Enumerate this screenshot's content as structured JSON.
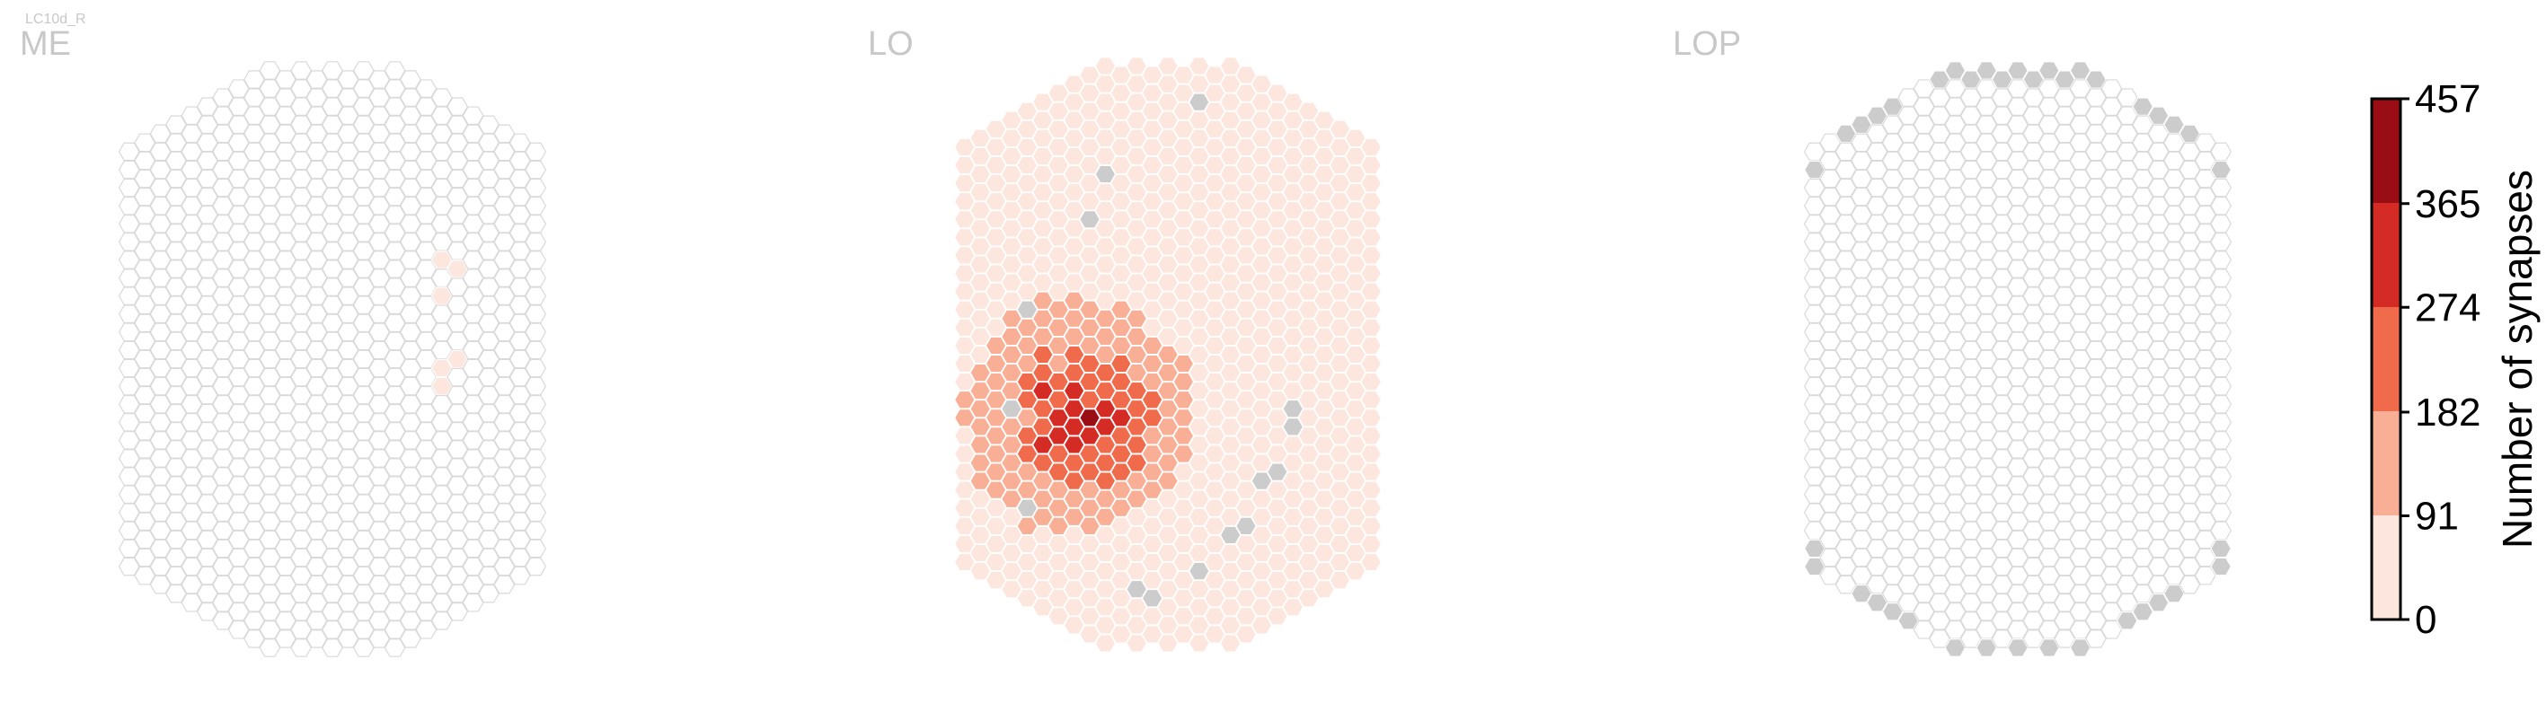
{
  "cell_type": "LC10d_R",
  "chart_data": {
    "type": "heatmap",
    "colorbar": {
      "label": "Number of synapses",
      "ticks": [
        0,
        91,
        182,
        274,
        365,
        457
      ],
      "range": [
        0,
        457
      ],
      "colors": [
        "#fde6dd",
        "#f8af96",
        "#f06a4c",
        "#d42b25",
        "#9b0d15"
      ]
    },
    "empty_color": "#ffffff",
    "empty_stroke": "#d9d9d9",
    "outside_color": "#cccccc",
    "panels": [
      {
        "title": "ME",
        "colored_cells": [
          {
            "q": 7,
            "r": -6,
            "value": 60
          },
          {
            "q": 7,
            "r": -4,
            "value": 35
          },
          {
            "q": 8,
            "r": -5,
            "value": 50
          },
          {
            "q": 7,
            "r": 0,
            "value": 45
          },
          {
            "q": 7,
            "r": 1,
            "value": 55
          },
          {
            "q": 8,
            "r": 0,
            "value": 30
          }
        ],
        "outside_cells": []
      },
      {
        "title": "LO",
        "base_value": 30,
        "hotspot": {
          "q": -6,
          "r": 3,
          "peak": 430,
          "radius": 5.5
        },
        "outside_cells": [
          {
            "q": -4,
            "r": -10
          },
          {
            "q": -5,
            "r": -8
          },
          {
            "q": 2,
            "r": -14
          },
          {
            "q": -9,
            "r": -3
          },
          {
            "q": -10,
            "r": 3
          },
          {
            "q": -9,
            "r": 8
          },
          {
            "q": 8,
            "r": 3
          },
          {
            "q": 8,
            "r": 4
          },
          {
            "q": 7,
            "r": 6
          },
          {
            "q": 6,
            "r": 7
          },
          {
            "q": 5,
            "r": 9
          },
          {
            "q": 4,
            "r": 10
          },
          {
            "q": 2,
            "r": 12
          },
          {
            "q": -1,
            "r": 13
          },
          {
            "q": -2,
            "r": 13
          }
        ]
      },
      {
        "title": "LOP",
        "colored_cells": [],
        "outside_ring": true
      }
    ]
  }
}
